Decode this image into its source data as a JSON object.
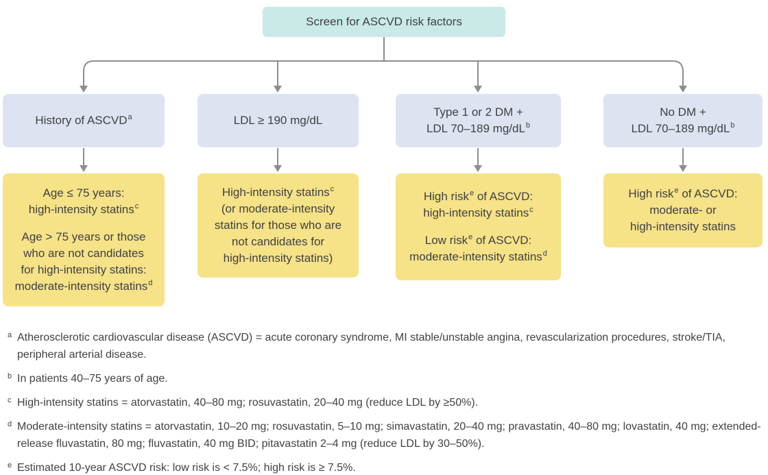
{
  "palette": {
    "root_box": "#c9eae7",
    "condition_box": "#dee3f2",
    "outcome_box": "#f6e287",
    "connector_gray": "#8b8d90",
    "text": "#3f4144",
    "background": "#ffffff"
  },
  "flowchart": {
    "root": {
      "label": "Screen for ASCVD risk factors"
    },
    "columns": [
      {
        "condition": {
          "lines": [
            [
              {
                "t": "History of ASCVD"
              },
              {
                "s": "a"
              }
            ]
          ]
        },
        "outcome": {
          "lines": [
            [
              {
                "t": "Age ≤ 75 years:"
              }
            ],
            [
              {
                "t": "high-intensity statins"
              },
              {
                "s": "c"
              }
            ],
            [],
            [
              {
                "t": "Age > 75 years or those"
              }
            ],
            [
              {
                "t": "who are not candidates"
              }
            ],
            [
              {
                "t": "for high-intensity statins:"
              }
            ],
            [
              {
                "t": "moderate-intensity statins"
              },
              {
                "s": "d"
              }
            ]
          ]
        }
      },
      {
        "condition": {
          "lines": [
            [
              {
                "t": "LDL ≥ 190 mg/dL"
              }
            ]
          ]
        },
        "outcome": {
          "lines": [
            [
              {
                "t": "High-intensity statins"
              },
              {
                "s": "c"
              }
            ],
            [
              {
                "t": "(or moderate-intensity"
              }
            ],
            [
              {
                "t": "statins for those who are"
              }
            ],
            [
              {
                "t": "not candidates for"
              }
            ],
            [
              {
                "t": "high-intensity statins)"
              }
            ]
          ]
        }
      },
      {
        "condition": {
          "lines": [
            [
              {
                "t": "Type 1 or 2 DM +"
              }
            ],
            [
              {
                "t": "LDL 70–189 mg/dL"
              },
              {
                "s": "b"
              }
            ]
          ]
        },
        "outcome": {
          "lines": [
            [
              {
                "t": "High risk"
              },
              {
                "s": "e"
              },
              {
                "t": " of ASCVD:"
              }
            ],
            [
              {
                "t": "high-intensity statins"
              },
              {
                "s": "c"
              }
            ],
            [],
            [
              {
                "t": "Low risk"
              },
              {
                "s": "e"
              },
              {
                "t": " of ASCVD:"
              }
            ],
            [
              {
                "t": "moderate-intensity statins"
              },
              {
                "s": "d"
              }
            ]
          ]
        }
      },
      {
        "condition": {
          "lines": [
            [
              {
                "t": "No DM +"
              }
            ],
            [
              {
                "t": "LDL 70–189 mg/dL"
              },
              {
                "s": "b"
              }
            ]
          ]
        },
        "outcome": {
          "lines": [
            [
              {
                "t": "High risk"
              },
              {
                "s": "e"
              },
              {
                "t": " of ASCVD:"
              }
            ],
            [
              {
                "t": "moderate- or"
              }
            ],
            [
              {
                "t": "high-intensity statins"
              }
            ]
          ]
        }
      }
    ]
  },
  "footnotes": [
    {
      "marker": "a",
      "text": "Atherosclerotic cardiovascular disease (ASCVD) = acute coronary syndrome, MI stable/unstable angina, revascularization procedures, stroke/TIA, peripheral arterial disease."
    },
    {
      "marker": "b",
      "text": "In patients 40–75 years of age."
    },
    {
      "marker": "c",
      "text": "High-intensity statins = atorvastatin, 40–80 mg; rosuvastatin, 20–40 mg (reduce LDL by ≥50%)."
    },
    {
      "marker": "d",
      "text": "Moderate-intensity statins = atorvastatin, 10–20 mg; rosuvastatin, 5–10 mg; simavastatin, 20–40 mg; pravastatin, 40–80 mg; lovastatin, 40 mg; extended-release fluvastatin, 80 mg; fluvastatin, 40 mg BID; pitavastatin 2–4 mg (reduce LDL by 30–50%)."
    },
    {
      "marker": "e",
      "text": "Estimated 10-year ASCVD risk: low risk is < 7.5%; high risk is ≥ 7.5%."
    }
  ]
}
